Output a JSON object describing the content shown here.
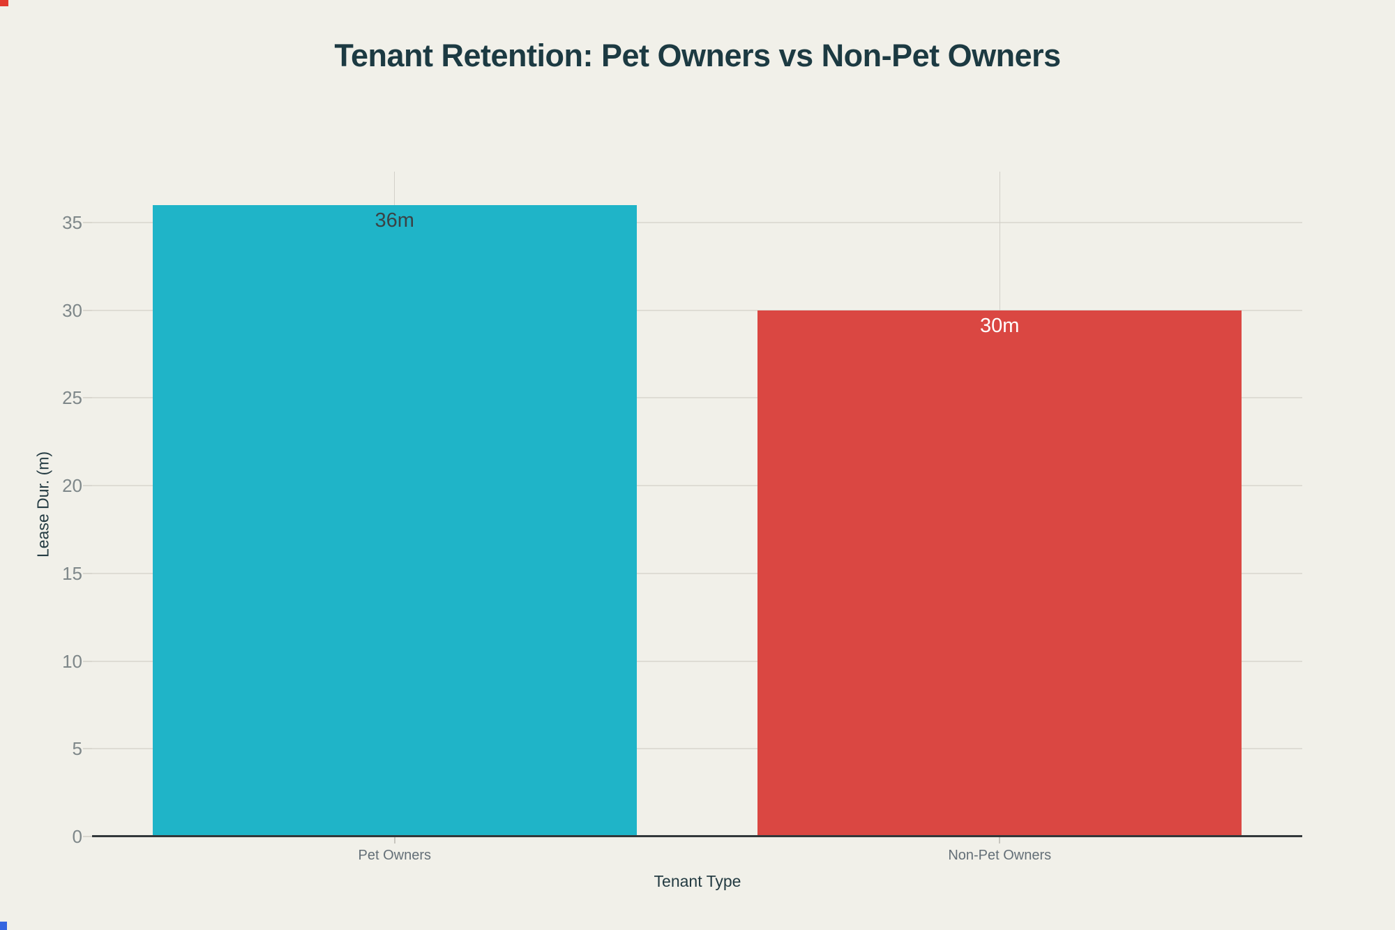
{
  "chart_data": {
    "type": "bar",
    "title": "Tenant Retention: Pet Owners vs Non-Pet Owners",
    "xlabel": "Tenant Type",
    "ylabel": "Lease Dur. (m)",
    "categories": [
      "Pet Owners",
      "Non-Pet Owners"
    ],
    "values": [
      36,
      30
    ],
    "bar_value_labels": [
      "36m",
      "30m"
    ],
    "bar_colors": [
      "#1FB4C8",
      "#DA4742"
    ],
    "bar_label_colors": [
      "#3B4245",
      "#FFFFFF"
    ],
    "yticks": [
      0,
      5,
      10,
      15,
      20,
      25,
      30,
      35
    ],
    "ytick_labels": [
      "0",
      "5",
      "10",
      "15",
      "20",
      "25",
      "30",
      "35"
    ],
    "ylim": [
      0,
      37.9
    ],
    "bar_band_fraction": 0.8,
    "grid": "on",
    "legend": "none"
  },
  "theme": {
    "background": "#F1F0E9",
    "grid_color": "#DEDCD4",
    "axis_line_color": "#32383A",
    "title_color": "#1C3A42",
    "axis_title_color": "#243B42",
    "tick_label_color": "#7E8789",
    "category_label_color": "#646F77"
  },
  "artifacts": {
    "top_left_mark_color": "#E23A2E",
    "bottom_left_mark_color": "#3565E0"
  }
}
